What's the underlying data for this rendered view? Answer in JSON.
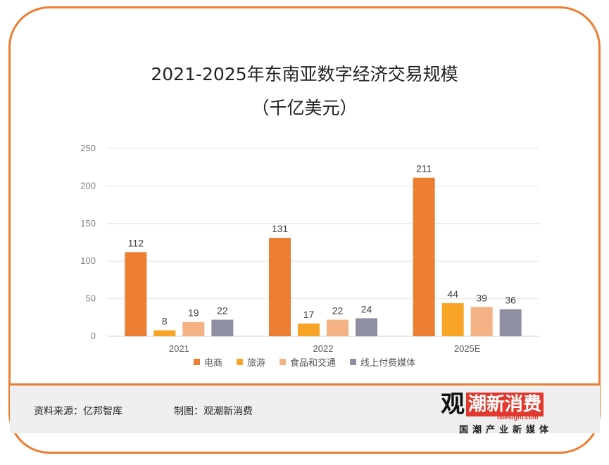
{
  "title_line1": "2021-2025年东南亚数字经济交易规模",
  "title_line2": "（千亿美元）",
  "chart_data": {
    "type": "bar",
    "categories": [
      "2021",
      "2022",
      "2025E"
    ],
    "series": [
      {
        "name": "电商",
        "values": [
          112,
          131,
          211
        ],
        "color": "#ED7D31"
      },
      {
        "name": "旅游",
        "values": [
          8,
          17,
          44
        ],
        "color": "#F8A427"
      },
      {
        "name": "食品和交通",
        "values": [
          19,
          22,
          39
        ],
        "color": "#F4B183"
      },
      {
        "name": "线上付费媒体",
        "values": [
          22,
          24,
          36
        ],
        "color": "#8E90A2"
      }
    ],
    "ylim": [
      0,
      250
    ],
    "yticks": [
      0,
      50,
      100,
      150,
      200,
      250
    ],
    "grid": true,
    "legend_position": "bottom"
  },
  "footer": {
    "source": "资料来源：亿邦智库",
    "made_by": "制图：观潮新消费"
  },
  "logo": {
    "mark_char": "观",
    "mark_red": "潮新消费",
    "url": "tidesight.com",
    "tagline": "国潮产业新媒体"
  }
}
